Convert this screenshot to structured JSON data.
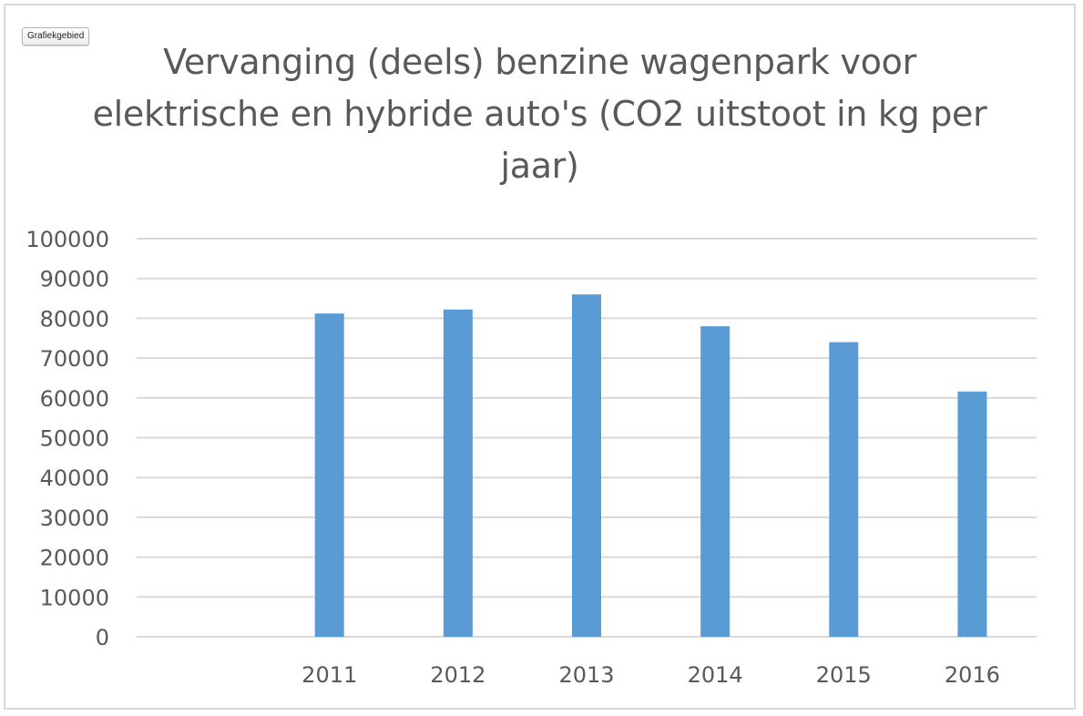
{
  "chart_area_label": "Grafiekgebied",
  "colors": {
    "bar": "#5b9bd5",
    "grid": "#d9d9d9",
    "text": "#595959"
  },
  "chart_data": {
    "type": "bar",
    "title": "Vervanging (deels) benzine wagenpark voor elektrische en hybride auto's (CO2 uitstoot in kg per jaar)",
    "xlabel": "",
    "ylabel": "",
    "categories": [
      "",
      "2011",
      "2012",
      "2013",
      "2014",
      "2015",
      "2016"
    ],
    "values": [
      null,
      81200,
      82200,
      86000,
      78000,
      74000,
      61600
    ],
    "ylim": [
      0,
      100000
    ],
    "y_ticks": [
      0,
      10000,
      20000,
      30000,
      40000,
      50000,
      60000,
      70000,
      80000,
      90000,
      100000
    ],
    "grid": true,
    "legend": "none"
  }
}
